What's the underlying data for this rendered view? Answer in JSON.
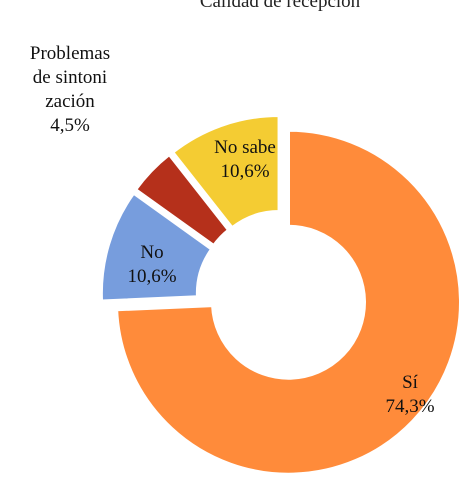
{
  "chart_data": {
    "type": "donut",
    "title": "Calidad de recepción",
    "categories": [
      "Sí",
      "No",
      "Problemas de sintonización",
      "No sabe"
    ],
    "values": [
      74.3,
      10.6,
      4.5,
      10.6
    ],
    "value_labels": [
      "74,3%",
      "10,6%",
      "4,5%",
      "10,6%"
    ],
    "colors": [
      "#ff8b3a",
      "#779ddd",
      "#b5301b",
      "#f4cc33"
    ]
  }
}
